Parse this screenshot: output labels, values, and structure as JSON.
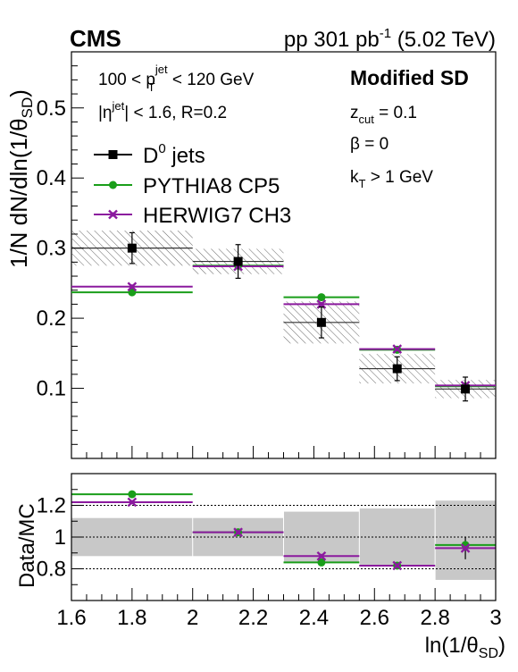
{
  "header": {
    "experiment": "CMS",
    "lumi_prefix": "pp 301 pb",
    "lumi_sup": "-1",
    "lumi_suffix": " (5.02 TeV)"
  },
  "annotations": {
    "pt_range_pre": "100 < p",
    "pt_sup": "jet",
    "pt_sub": "T",
    "pt_range_post": " < 120 GeV",
    "eta_pre": "|η",
    "eta_sup": "jet",
    "eta_post": "| < 1.6, R=0.2",
    "method": "Modified SD",
    "zcut_pre": "z",
    "zcut_sub": "cut",
    "zcut_post": " = 0.1",
    "beta": "β = 0",
    "kt_pre": "k",
    "kt_sub": "T",
    "kt_post": " > 1 GeV"
  },
  "colors": {
    "data": "#000000",
    "pythia": "#1a9e1a",
    "herwig": "#8b1a9e",
    "uncert_band": "#c8c8c8"
  },
  "chart_data": [
    {
      "type": "scatter",
      "panel": "main",
      "ylabel": "1/N dN/dln(1/θ_SD)",
      "ylim": [
        0.0,
        0.58
      ],
      "xlim": [
        1.6,
        3.0
      ],
      "yticks": [
        0.1,
        0.2,
        0.3,
        0.4,
        0.5
      ],
      "ytick_labels": [
        "0.1",
        "0.2",
        "0.3",
        "0.4",
        "0.5"
      ],
      "bins": [
        [
          1.6,
          2.0
        ],
        [
          2.0,
          2.3
        ],
        [
          2.3,
          2.55
        ],
        [
          2.55,
          2.8
        ],
        [
          2.8,
          3.0
        ]
      ],
      "legend": {
        "placement": "top-left",
        "entries": [
          {
            "series": "data",
            "label_pre": "D",
            "label_sup": "0",
            "label_post": " jets",
            "marker": "square"
          },
          {
            "series": "pythia",
            "label": "PYTHIA8 CP5",
            "marker": "circle"
          },
          {
            "series": "herwig",
            "label": "HERWIG7 CH3",
            "marker": "star"
          }
        ]
      },
      "series": [
        {
          "name": "D0 jets",
          "key": "data",
          "x": [
            1.8,
            2.15,
            2.425,
            2.675,
            2.9
          ],
          "values": [
            0.3,
            0.281,
            0.194,
            0.128,
            0.099
          ],
          "stat_err": [
            0.022,
            0.024,
            0.022,
            0.017,
            0.017
          ],
          "syst_err": [
            0.025,
            0.018,
            0.03,
            0.021,
            0.013
          ]
        },
        {
          "name": "PYTHIA8 CP5",
          "key": "pythia",
          "x": [
            1.8,
            2.15,
            2.425,
            2.675,
            2.9
          ],
          "values": [
            0.237,
            0.275,
            0.23,
            0.155,
            0.103
          ]
        },
        {
          "name": "HERWIG7 CH3",
          "key": "herwig",
          "x": [
            1.8,
            2.15,
            2.425,
            2.675,
            2.9
          ],
          "values": [
            0.245,
            0.274,
            0.22,
            0.156,
            0.104
          ]
        }
      ]
    },
    {
      "type": "scatter",
      "panel": "ratio",
      "ylabel": "Data/MC",
      "xlabel": "ln(1/θ_SD)",
      "ylim": [
        0.6,
        1.4
      ],
      "xlim": [
        1.6,
        3.0
      ],
      "yticks": [
        0.8,
        1.0,
        1.2
      ],
      "ytick_labels": [
        "0.8",
        "1",
        "1.2"
      ],
      "xticks": [
        1.6,
        1.8,
        2.0,
        2.2,
        2.4,
        2.6,
        2.8,
        3.0
      ],
      "xtick_labels": [
        "1.6",
        "1.8",
        "2",
        "2.2",
        "2.4",
        "2.6",
        "2.8",
        "3"
      ],
      "reference_lines": [
        0.8,
        1.0,
        1.2
      ],
      "bins": [
        [
          1.6,
          2.0
        ],
        [
          2.0,
          2.3
        ],
        [
          2.3,
          2.55
        ],
        [
          2.55,
          2.8
        ],
        [
          2.8,
          3.0
        ]
      ],
      "band": {
        "low": [
          0.88,
          0.88,
          0.84,
          0.82,
          0.73
        ],
        "high": [
          1.12,
          1.12,
          1.16,
          1.18,
          1.23
        ]
      },
      "series": [
        {
          "name": "PYTHIA8 CP5",
          "key": "pythia",
          "x": [
            1.8,
            2.15,
            2.425,
            2.675,
            2.9
          ],
          "values": [
            1.27,
            1.03,
            0.84,
            0.82,
            0.95
          ]
        },
        {
          "name": "HERWIG7 CH3",
          "key": "herwig",
          "x": [
            1.8,
            2.15,
            2.425,
            2.675,
            2.9
          ],
          "values": [
            1.22,
            1.03,
            0.88,
            0.82,
            0.93
          ],
          "err": [
            0.0,
            0.0,
            0.0,
            0.0,
            0.07
          ]
        }
      ]
    }
  ]
}
